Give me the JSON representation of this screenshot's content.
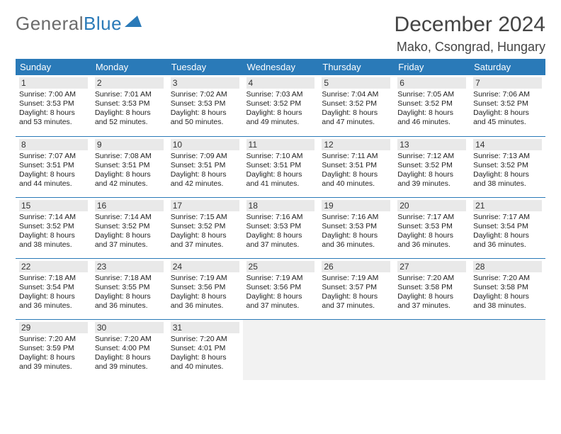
{
  "brand": {
    "part1": "General",
    "part2": "Blue"
  },
  "title": {
    "month": "December 2024",
    "location": "Mako, Csongrad, Hungary"
  },
  "colors": {
    "header_bg": "#2a7ab8",
    "header_fg": "#ffffff",
    "rule": "#2a7ab8",
    "daynum_bg": "#e9e9e9"
  },
  "weekdays": [
    "Sunday",
    "Monday",
    "Tuesday",
    "Wednesday",
    "Thursday",
    "Friday",
    "Saturday"
  ],
  "days": [
    {
      "n": "1",
      "sr": "Sunrise: 7:00 AM",
      "ss": "Sunset: 3:53 PM",
      "d1": "Daylight: 8 hours",
      "d2": "and 53 minutes."
    },
    {
      "n": "2",
      "sr": "Sunrise: 7:01 AM",
      "ss": "Sunset: 3:53 PM",
      "d1": "Daylight: 8 hours",
      "d2": "and 52 minutes."
    },
    {
      "n": "3",
      "sr": "Sunrise: 7:02 AM",
      "ss": "Sunset: 3:53 PM",
      "d1": "Daylight: 8 hours",
      "d2": "and 50 minutes."
    },
    {
      "n": "4",
      "sr": "Sunrise: 7:03 AM",
      "ss": "Sunset: 3:52 PM",
      "d1": "Daylight: 8 hours",
      "d2": "and 49 minutes."
    },
    {
      "n": "5",
      "sr": "Sunrise: 7:04 AM",
      "ss": "Sunset: 3:52 PM",
      "d1": "Daylight: 8 hours",
      "d2": "and 47 minutes."
    },
    {
      "n": "6",
      "sr": "Sunrise: 7:05 AM",
      "ss": "Sunset: 3:52 PM",
      "d1": "Daylight: 8 hours",
      "d2": "and 46 minutes."
    },
    {
      "n": "7",
      "sr": "Sunrise: 7:06 AM",
      "ss": "Sunset: 3:52 PM",
      "d1": "Daylight: 8 hours",
      "d2": "and 45 minutes."
    },
    {
      "n": "8",
      "sr": "Sunrise: 7:07 AM",
      "ss": "Sunset: 3:51 PM",
      "d1": "Daylight: 8 hours",
      "d2": "and 44 minutes."
    },
    {
      "n": "9",
      "sr": "Sunrise: 7:08 AM",
      "ss": "Sunset: 3:51 PM",
      "d1": "Daylight: 8 hours",
      "d2": "and 42 minutes."
    },
    {
      "n": "10",
      "sr": "Sunrise: 7:09 AM",
      "ss": "Sunset: 3:51 PM",
      "d1": "Daylight: 8 hours",
      "d2": "and 42 minutes."
    },
    {
      "n": "11",
      "sr": "Sunrise: 7:10 AM",
      "ss": "Sunset: 3:51 PM",
      "d1": "Daylight: 8 hours",
      "d2": "and 41 minutes."
    },
    {
      "n": "12",
      "sr": "Sunrise: 7:11 AM",
      "ss": "Sunset: 3:51 PM",
      "d1": "Daylight: 8 hours",
      "d2": "and 40 minutes."
    },
    {
      "n": "13",
      "sr": "Sunrise: 7:12 AM",
      "ss": "Sunset: 3:52 PM",
      "d1": "Daylight: 8 hours",
      "d2": "and 39 minutes."
    },
    {
      "n": "14",
      "sr": "Sunrise: 7:13 AM",
      "ss": "Sunset: 3:52 PM",
      "d1": "Daylight: 8 hours",
      "d2": "and 38 minutes."
    },
    {
      "n": "15",
      "sr": "Sunrise: 7:14 AM",
      "ss": "Sunset: 3:52 PM",
      "d1": "Daylight: 8 hours",
      "d2": "and 38 minutes."
    },
    {
      "n": "16",
      "sr": "Sunrise: 7:14 AM",
      "ss": "Sunset: 3:52 PM",
      "d1": "Daylight: 8 hours",
      "d2": "and 37 minutes."
    },
    {
      "n": "17",
      "sr": "Sunrise: 7:15 AM",
      "ss": "Sunset: 3:52 PM",
      "d1": "Daylight: 8 hours",
      "d2": "and 37 minutes."
    },
    {
      "n": "18",
      "sr": "Sunrise: 7:16 AM",
      "ss": "Sunset: 3:53 PM",
      "d1": "Daylight: 8 hours",
      "d2": "and 37 minutes."
    },
    {
      "n": "19",
      "sr": "Sunrise: 7:16 AM",
      "ss": "Sunset: 3:53 PM",
      "d1": "Daylight: 8 hours",
      "d2": "and 36 minutes."
    },
    {
      "n": "20",
      "sr": "Sunrise: 7:17 AM",
      "ss": "Sunset: 3:53 PM",
      "d1": "Daylight: 8 hours",
      "d2": "and 36 minutes."
    },
    {
      "n": "21",
      "sr": "Sunrise: 7:17 AM",
      "ss": "Sunset: 3:54 PM",
      "d1": "Daylight: 8 hours",
      "d2": "and 36 minutes."
    },
    {
      "n": "22",
      "sr": "Sunrise: 7:18 AM",
      "ss": "Sunset: 3:54 PM",
      "d1": "Daylight: 8 hours",
      "d2": "and 36 minutes."
    },
    {
      "n": "23",
      "sr": "Sunrise: 7:18 AM",
      "ss": "Sunset: 3:55 PM",
      "d1": "Daylight: 8 hours",
      "d2": "and 36 minutes."
    },
    {
      "n": "24",
      "sr": "Sunrise: 7:19 AM",
      "ss": "Sunset: 3:56 PM",
      "d1": "Daylight: 8 hours",
      "d2": "and 36 minutes."
    },
    {
      "n": "25",
      "sr": "Sunrise: 7:19 AM",
      "ss": "Sunset: 3:56 PM",
      "d1": "Daylight: 8 hours",
      "d2": "and 37 minutes."
    },
    {
      "n": "26",
      "sr": "Sunrise: 7:19 AM",
      "ss": "Sunset: 3:57 PM",
      "d1": "Daylight: 8 hours",
      "d2": "and 37 minutes."
    },
    {
      "n": "27",
      "sr": "Sunrise: 7:20 AM",
      "ss": "Sunset: 3:58 PM",
      "d1": "Daylight: 8 hours",
      "d2": "and 37 minutes."
    },
    {
      "n": "28",
      "sr": "Sunrise: 7:20 AM",
      "ss": "Sunset: 3:58 PM",
      "d1": "Daylight: 8 hours",
      "d2": "and 38 minutes."
    },
    {
      "n": "29",
      "sr": "Sunrise: 7:20 AM",
      "ss": "Sunset: 3:59 PM",
      "d1": "Daylight: 8 hours",
      "d2": "and 39 minutes."
    },
    {
      "n": "30",
      "sr": "Sunrise: 7:20 AM",
      "ss": "Sunset: 4:00 PM",
      "d1": "Daylight: 8 hours",
      "d2": "and 39 minutes."
    },
    {
      "n": "31",
      "sr": "Sunrise: 7:20 AM",
      "ss": "Sunset: 4:01 PM",
      "d1": "Daylight: 8 hours",
      "d2": "and 40 minutes."
    }
  ]
}
